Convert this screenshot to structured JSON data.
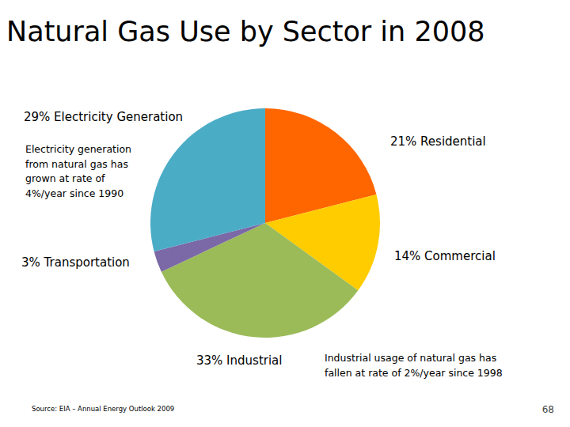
{
  "chart_data": {
    "type": "pie",
    "title": "Natural Gas Use by Sector in 2008",
    "values": [
      21,
      14,
      33,
      3,
      29
    ],
    "value_labels": [
      "21% Residential",
      "14% Commercial",
      "33% Industrial",
      "3% Transportation",
      "29% Electricity Generation"
    ],
    "colors": [
      "#ff6600",
      "#ffcc00",
      "#9bbb59",
      "#7b68a6",
      "#4bacc6"
    ],
    "data_labels": true,
    "annotations": [
      [
        "Electricity generation",
        "from natural gas has",
        "grown at rate of",
        "4%/year since 1990"
      ],
      [
        "Industrial usage of natural gas has",
        "fallen at rate of 2%/year since 1998"
      ]
    ],
    "source": "Source: EIA – Annual Energy Outlook 2009",
    "page_number": 68
  }
}
